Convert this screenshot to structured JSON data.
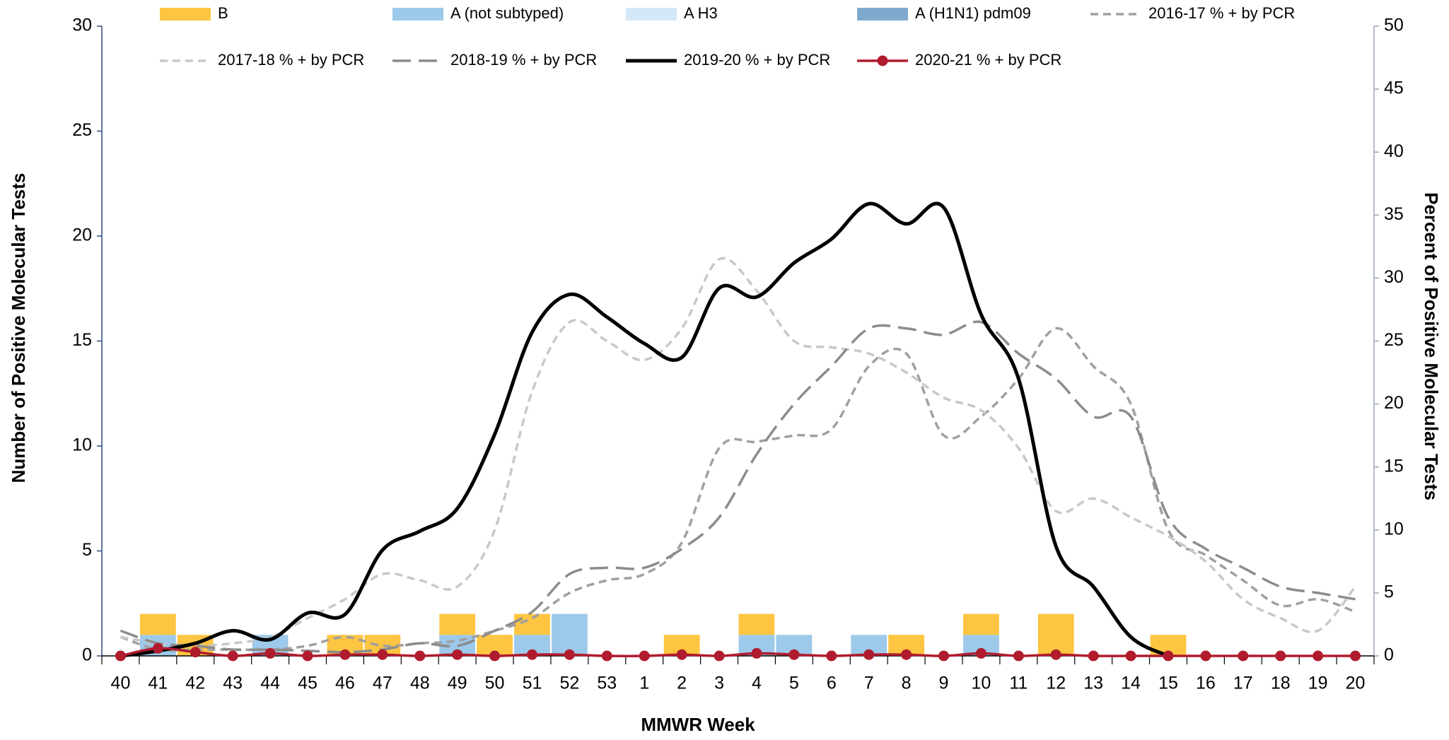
{
  "chart_data": {
    "type": "bar",
    "x_label": "MMWR Week",
    "y_label": "Number of Positive Molecular Tests",
    "y2_label": "Percent of Positive Molecular Tests",
    "categories": [
      "40",
      "41",
      "42",
      "43",
      "44",
      "45",
      "46",
      "47",
      "48",
      "49",
      "50",
      "51",
      "52",
      "53",
      "1",
      "2",
      "3",
      "4",
      "5",
      "6",
      "7",
      "8",
      "9",
      "10",
      "11",
      "12",
      "13",
      "14",
      "15",
      "16",
      "17",
      "18",
      "19",
      "20"
    ],
    "ylim": [
      0,
      30
    ],
    "yticks": [
      0,
      5,
      10,
      15,
      20,
      25,
      30
    ],
    "y2lim": [
      0,
      50
    ],
    "y2ticks": [
      0,
      5,
      10,
      15,
      20,
      25,
      30,
      35,
      40,
      45,
      50
    ],
    "stacked": true,
    "series": [
      {
        "name": "B",
        "type": "bar",
        "color": "#fdc541",
        "values": [
          0,
          1,
          1,
          0,
          0,
          0,
          1,
          1,
          0,
          1,
          1,
          1,
          0,
          0,
          0,
          1,
          0,
          1,
          0,
          0,
          0,
          1,
          0,
          1,
          0,
          2,
          0,
          0,
          1,
          0,
          0,
          0,
          0,
          0
        ]
      },
      {
        "name": "A (not subtyped)",
        "type": "bar",
        "color": "#9dc9ea",
        "values": [
          0,
          1,
          0,
          0,
          1,
          0,
          0,
          0,
          0,
          1,
          0,
          1,
          2,
          0,
          0,
          0,
          0,
          1,
          1,
          0,
          1,
          0,
          0,
          1,
          0,
          0,
          0,
          0,
          0,
          0,
          0,
          0,
          0,
          0
        ]
      },
      {
        "name": "A H3",
        "type": "bar",
        "color": "#d5e8f7",
        "values": [
          0,
          0,
          0,
          0,
          0,
          0,
          0,
          0,
          0,
          0,
          0,
          0,
          0,
          0,
          0,
          0,
          0,
          0,
          0,
          0,
          0,
          0,
          0,
          0,
          0,
          0,
          0,
          0,
          0,
          0,
          0,
          0,
          0,
          0
        ]
      },
      {
        "name": "A (H1N1) pdm09",
        "type": "bar",
        "color": "#7fa9cd",
        "values": [
          0,
          0,
          0,
          0,
          0,
          0,
          0,
          0,
          0,
          0,
          0,
          0,
          0,
          0,
          0,
          0,
          0,
          0,
          0,
          0,
          0,
          0,
          0,
          0,
          0,
          0,
          0,
          0,
          0,
          0,
          0,
          0,
          0,
          0
        ]
      },
      {
        "name": "2016-17 % + by PCR",
        "type": "line",
        "axis": "y2",
        "color": "#a0a0a0",
        "dash": "short",
        "values": [
          1.5,
          0.5,
          0.5,
          0.5,
          0.5,
          0.8,
          1.5,
          0.8,
          1,
          1.2,
          2,
          3,
          5,
          6,
          6.5,
          9,
          16.5,
          17,
          17.5,
          18,
          23,
          24,
          17.5,
          19,
          22,
          26,
          23,
          20,
          10,
          8,
          6,
          4,
          4.5,
          3.5
        ]
      },
      {
        "name": "2017-18 % + by PCR",
        "type": "line",
        "axis": "y2",
        "color": "#c8c8c8",
        "dash": "short",
        "values": [
          1.5,
          1,
          0.8,
          1,
          1.5,
          3,
          4.5,
          6.5,
          6,
          5.5,
          10,
          21,
          26.5,
          25,
          23.5,
          26,
          31.5,
          29,
          25,
          24.5,
          24,
          22.5,
          20.5,
          19.5,
          16.5,
          11.5,
          12.5,
          11,
          9.5,
          7.5,
          4.5,
          3,
          2,
          5.5
        ]
      },
      {
        "name": "2018-19 % + by PCR",
        "type": "line",
        "axis": "y2",
        "color": "#8c8c8c",
        "dash": "long",
        "values": [
          2,
          1,
          0.8,
          0.5,
          0.5,
          0.4,
          0.3,
          0.5,
          1,
          0.8,
          2,
          3.5,
          6.5,
          7,
          7,
          8.5,
          11,
          16,
          20,
          23,
          26,
          26,
          25.5,
          26.5,
          24,
          22,
          19,
          19,
          11,
          8.5,
          7,
          5.5,
          5,
          4.5
        ]
      },
      {
        "name": "2019-20 % + by PCR",
        "type": "line",
        "axis": "y2",
        "color": "#000000",
        "dash": "solid",
        "values": [
          0,
          0.4,
          1,
          2,
          1.3,
          3.4,
          3.3,
          8.4,
          9.9,
          11.7,
          17.6,
          25.7,
          28.7,
          26.9,
          24.8,
          23.7,
          29.2,
          28.5,
          31.2,
          33.1,
          35.9,
          34.3,
          35.6,
          27.1,
          22,
          8.7,
          5.5,
          1.5,
          0,
          null,
          null,
          null,
          null,
          null
        ]
      },
      {
        "name": "2020-21 % + by PCR",
        "type": "line",
        "axis": "y2",
        "color": "#b01c2e",
        "dash": "solid",
        "marker": "circle",
        "values": [
          0,
          0.6,
          0.3,
          0,
          0.2,
          0,
          0.1,
          0.1,
          0,
          0.1,
          0,
          0.1,
          0.1,
          0,
          0,
          0.1,
          0,
          0.2,
          0.1,
          0,
          0.1,
          0.1,
          0,
          0.2,
          0,
          0.1,
          0,
          0,
          0,
          0,
          0,
          0,
          0,
          0
        ]
      }
    ]
  }
}
